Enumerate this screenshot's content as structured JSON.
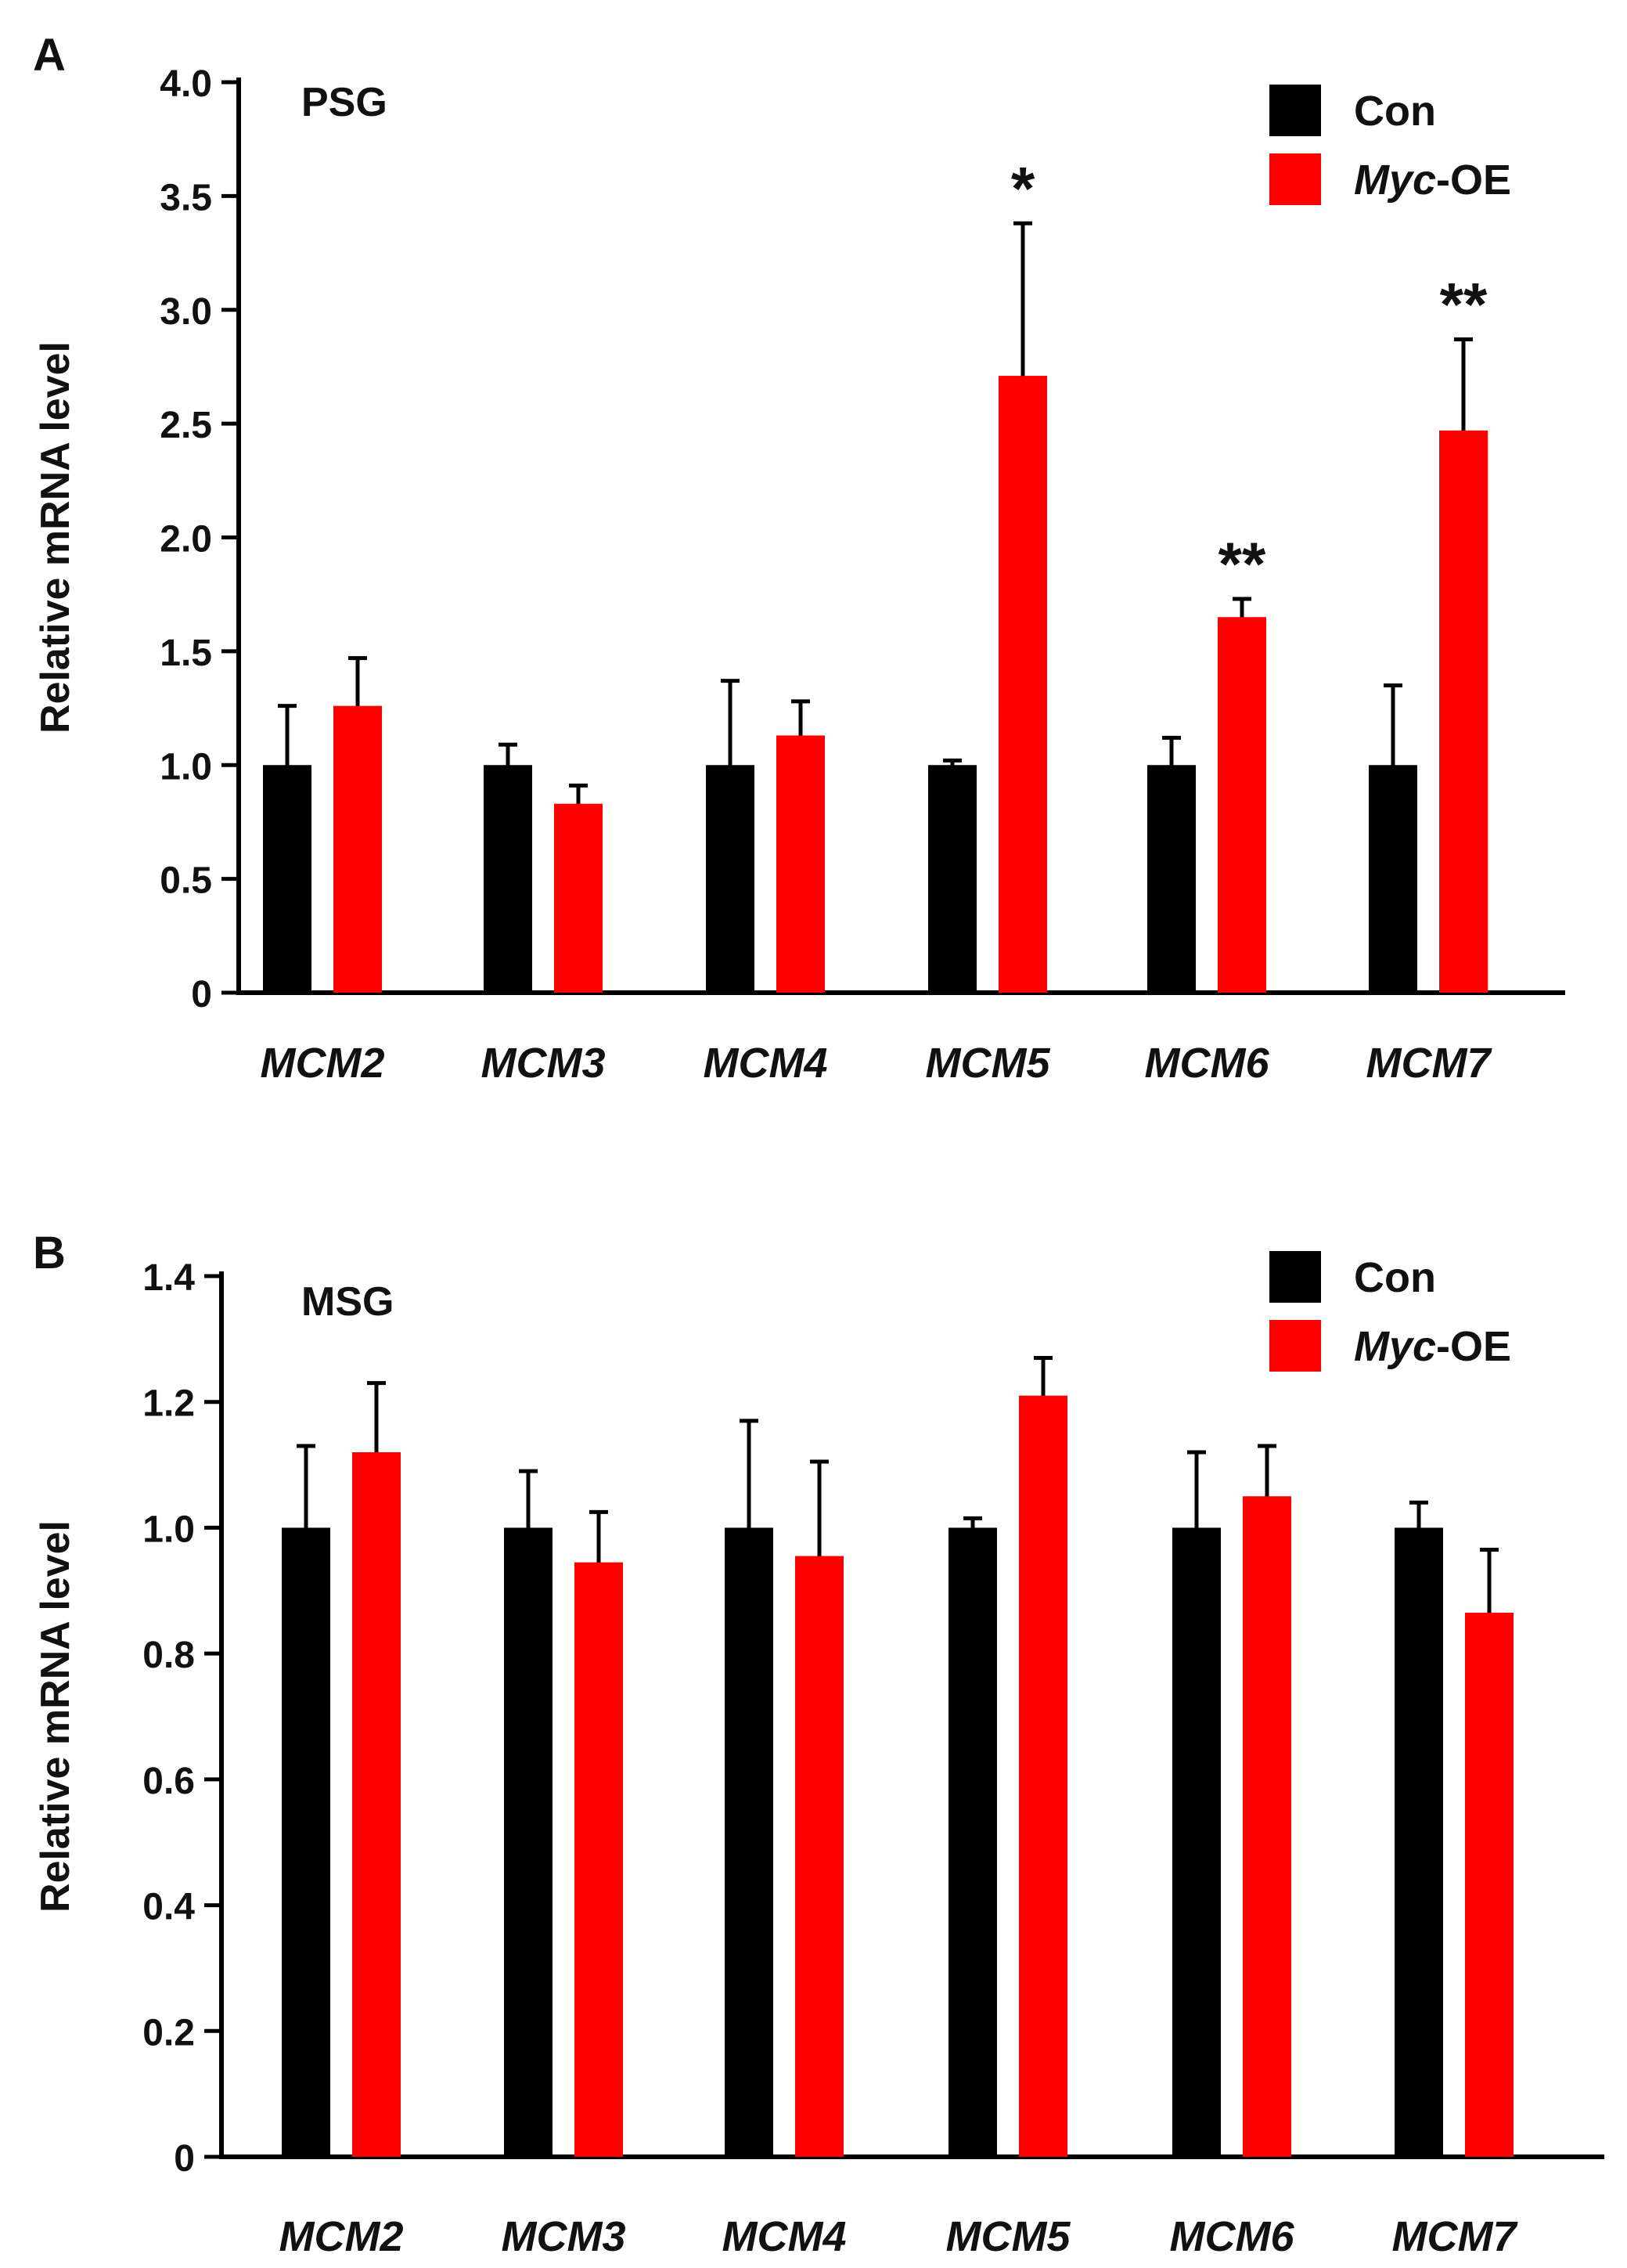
{
  "chart_data": [
    {
      "type": "bar",
      "panel_label": "A",
      "tissue_label": "PSG",
      "ylabel": "Relative mRNA level",
      "ylim": [
        0,
        4.0
      ],
      "yticks": [
        0,
        0.5,
        1.0,
        1.5,
        2.0,
        2.5,
        3.0,
        3.5,
        4.0
      ],
      "ytick_labels": [
        "0",
        "0.5",
        "1.0",
        "1.5",
        "2.0",
        "2.5",
        "3.0",
        "3.5",
        "4.0"
      ],
      "categories": [
        "MCM2",
        "MCM3",
        "MCM4",
        "MCM5",
        "MCM6",
        "MCM7"
      ],
      "series": [
        {
          "name": "Con",
          "color": "#000000",
          "values": [
            1.0,
            1.0,
            1.0,
            1.0,
            1.0,
            1.0
          ],
          "errors": [
            0.26,
            0.09,
            0.37,
            0.02,
            0.12,
            0.35
          ]
        },
        {
          "name": "Myc-OE",
          "color": "#ff0000",
          "values": [
            1.26,
            0.83,
            1.13,
            2.71,
            1.65,
            2.47
          ],
          "errors": [
            0.21,
            0.08,
            0.15,
            0.67,
            0.08,
            0.4
          ]
        }
      ],
      "significance": [
        {
          "category": "MCM5",
          "text": "*"
        },
        {
          "category": "MCM6",
          "text": "**"
        },
        {
          "category": "MCM7",
          "text": "**"
        }
      ],
      "legend": {
        "placement": "top-right",
        "entries": [
          {
            "name_plain": "Con"
          },
          {
            "name_italic": "Myc",
            "name_plain": "-OE"
          }
        ]
      }
    },
    {
      "type": "bar",
      "panel_label": "B",
      "tissue_label": "MSG",
      "ylabel": "Relative mRNA level",
      "ylim": [
        0,
        1.4
      ],
      "yticks": [
        0,
        0.2,
        0.4,
        0.6,
        0.8,
        1.0,
        1.2,
        1.4
      ],
      "ytick_labels": [
        "0",
        "0.2",
        "0.4",
        "0.6",
        "0.8",
        "1.0",
        "1.2",
        "1.4"
      ],
      "categories": [
        "MCM2",
        "MCM3",
        "MCM4",
        "MCM5",
        "MCM6",
        "MCM7"
      ],
      "series": [
        {
          "name": "Con",
          "color": "#000000",
          "values": [
            1.0,
            1.0,
            1.0,
            1.0,
            1.0,
            1.0
          ],
          "errors": [
            0.13,
            0.09,
            0.17,
            0.015,
            0.12,
            0.04
          ]
        },
        {
          "name": "Myc-OE",
          "color": "#ff0000",
          "values": [
            1.12,
            0.945,
            0.955,
            1.21,
            1.05,
            0.865
          ],
          "errors": [
            0.11,
            0.08,
            0.15,
            0.06,
            0.08,
            0.1
          ]
        }
      ],
      "significance": [],
      "legend": {
        "placement": "top-right",
        "entries": [
          {
            "name_plain": "Con"
          },
          {
            "name_italic": "Myc",
            "name_plain": "-OE"
          }
        ]
      }
    }
  ]
}
